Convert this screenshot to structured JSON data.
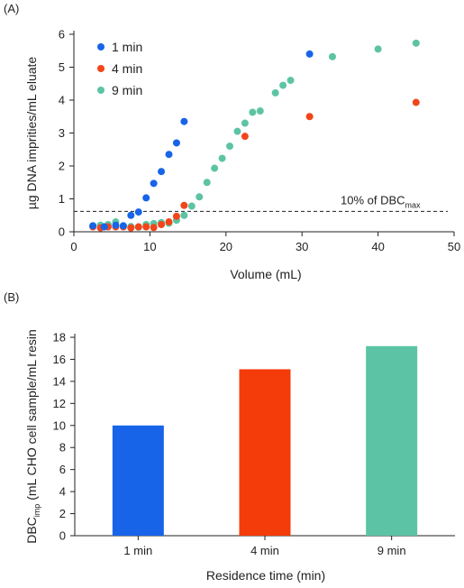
{
  "chart_data": [
    {
      "panel_label": "(A)",
      "type": "scatter",
      "xlabel": "Volume (mL)",
      "ylabel": "µg DNA imprities/mL eluate",
      "xlim": [
        0,
        50
      ],
      "ylim": [
        0,
        6
      ],
      "xticks": [
        0,
        10,
        20,
        30,
        40,
        50
      ],
      "yticks": [
        0,
        1,
        2,
        3,
        4,
        5,
        6
      ],
      "grid": false,
      "legend_position": "top-left",
      "reference_line": {
        "y": 0.62,
        "style": "dashed",
        "label": "10% of DBC",
        "label_sub": "max"
      },
      "series": [
        {
          "name": "1 min",
          "color": "#1764e8",
          "points": [
            [
              2.5,
              0.18
            ],
            [
              4,
              0.15
            ],
            [
              5.5,
              0.2
            ],
            [
              6.5,
              0.18
            ],
            [
              7.5,
              0.5
            ],
            [
              8.5,
              0.6
            ],
            [
              9.5,
              1.03
            ],
            [
              10.5,
              1.47
            ],
            [
              11.5,
              1.83
            ],
            [
              12.5,
              2.35
            ],
            [
              13.5,
              2.7
            ],
            [
              14.5,
              3.35
            ],
            [
              31,
              5.4
            ]
          ]
        },
        {
          "name": "4 min",
          "color": "#f2461a",
          "points": [
            [
              2.5,
              0.15
            ],
            [
              3.5,
              0.12
            ],
            [
              4.5,
              0.15
            ],
            [
              5.5,
              0.15
            ],
            [
              6.5,
              0.15
            ],
            [
              7.5,
              0.12
            ],
            [
              8.5,
              0.15
            ],
            [
              9.5,
              0.15
            ],
            [
              10.5,
              0.13
            ],
            [
              11.5,
              0.22
            ],
            [
              12.5,
              0.3
            ],
            [
              13.5,
              0.47
            ],
            [
              14.5,
              0.8
            ],
            [
              22.5,
              2.9
            ],
            [
              31,
              3.5
            ],
            [
              45,
              3.93
            ]
          ]
        },
        {
          "name": "9 min",
          "color": "#5cc4a4",
          "points": [
            [
              2.5,
              0.18
            ],
            [
              3.5,
              0.2
            ],
            [
              4.5,
              0.22
            ],
            [
              5.5,
              0.3
            ],
            [
              6.5,
              0.18
            ],
            [
              7.5,
              0.16
            ],
            [
              8.5,
              0.14
            ],
            [
              9.5,
              0.22
            ],
            [
              10.5,
              0.25
            ],
            [
              11.5,
              0.28
            ],
            [
              12.5,
              0.26
            ],
            [
              13.5,
              0.35
            ],
            [
              14.5,
              0.5
            ],
            [
              15.5,
              0.78
            ],
            [
              16.5,
              1.06
            ],
            [
              17.5,
              1.5
            ],
            [
              18.5,
              1.93
            ],
            [
              19.5,
              2.23
            ],
            [
              20.5,
              2.6
            ],
            [
              21.5,
              3.05
            ],
            [
              22.5,
              3.3
            ],
            [
              23.5,
              3.63
            ],
            [
              24.5,
              3.67
            ],
            [
              26.5,
              4.22
            ],
            [
              27.5,
              4.45
            ],
            [
              28.5,
              4.6
            ],
            [
              34,
              5.32
            ],
            [
              40,
              5.55
            ],
            [
              45,
              5.73
            ]
          ]
        }
      ]
    },
    {
      "panel_label": "(B)",
      "type": "bar",
      "xlabel": "Residence time (min)",
      "ylabel_main": "DBC",
      "ylabel_sub": "imp",
      "ylabel_rest": " (mL CHO cell sample/mL resin",
      "ylim": [
        0,
        18
      ],
      "yticks": [
        0,
        2,
        4,
        6,
        8,
        10,
        12,
        14,
        16,
        18
      ],
      "categories": [
        "1 min",
        "4 min",
        "9 min"
      ],
      "values": [
        10,
        15.1,
        17.2
      ],
      "colors": [
        "#1764e8",
        "#f43c0b",
        "#5cc4a4"
      ],
      "grid": false
    }
  ]
}
